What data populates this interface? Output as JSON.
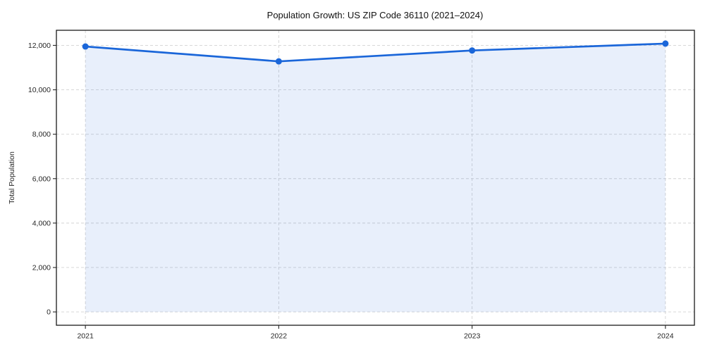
{
  "chart_data": {
    "type": "line",
    "title": "Population Growth: US ZIP Code 36110 (2021–2024)",
    "xlabel": "",
    "ylabel": "Total Population",
    "x": [
      2021,
      2022,
      2023,
      2024
    ],
    "series": [
      {
        "name": "Total Population",
        "values": [
          11950,
          11280,
          11770,
          12080
        ]
      }
    ],
    "xticks": [
      2021,
      2022,
      2023,
      2024
    ],
    "xtick_labels": [
      "2021",
      "2022",
      "2023",
      "2024"
    ],
    "yticks": [
      0,
      2000,
      4000,
      6000,
      8000,
      10000,
      12000
    ],
    "ytick_labels": [
      "0",
      "2,000",
      "4,000",
      "6,000",
      "8,000",
      "10,000",
      "12,000"
    ],
    "xlim": [
      2020.85,
      2024.15
    ],
    "ylim": [
      -600,
      12680
    ],
    "grid": true,
    "grid_style": "dashed",
    "legend": "none",
    "line_color": "#1a66d9",
    "marker": "circle",
    "fill_to_zero": true,
    "fill_color": "#1a66d9",
    "fill_opacity": 0.1,
    "grid_color": "#d3d3d3",
    "background": "#ffffff"
  }
}
